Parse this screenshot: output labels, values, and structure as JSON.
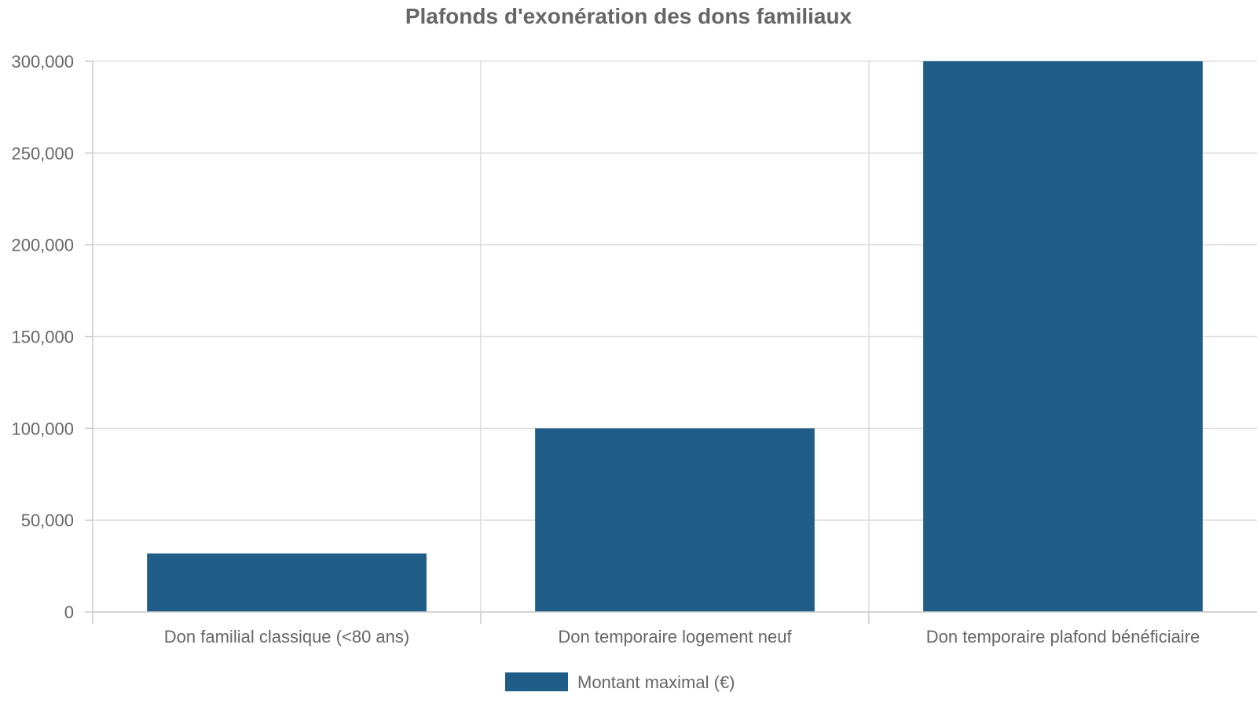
{
  "chart_data": {
    "type": "bar",
    "title": "Plafonds d'exonération des dons familiaux",
    "xlabel": "",
    "ylabel": "",
    "categories": [
      "Don familial classique (<80 ans)",
      "Don temporaire logement neuf",
      "Don temporaire plafond bénéficiaire"
    ],
    "series": [
      {
        "name": "Montant maximal (€)",
        "values": [
          31865,
          100000,
          300000
        ],
        "color": "#1f5c87"
      }
    ],
    "ylim": [
      0,
      300000
    ],
    "yticks": [
      0,
      50000,
      100000,
      150000,
      200000,
      250000,
      300000
    ],
    "ytick_labels": [
      "0",
      "50,000",
      "100,000",
      "150,000",
      "200,000",
      "250,000",
      "300,000"
    ],
    "grid": true,
    "legend": "bottom-center"
  }
}
